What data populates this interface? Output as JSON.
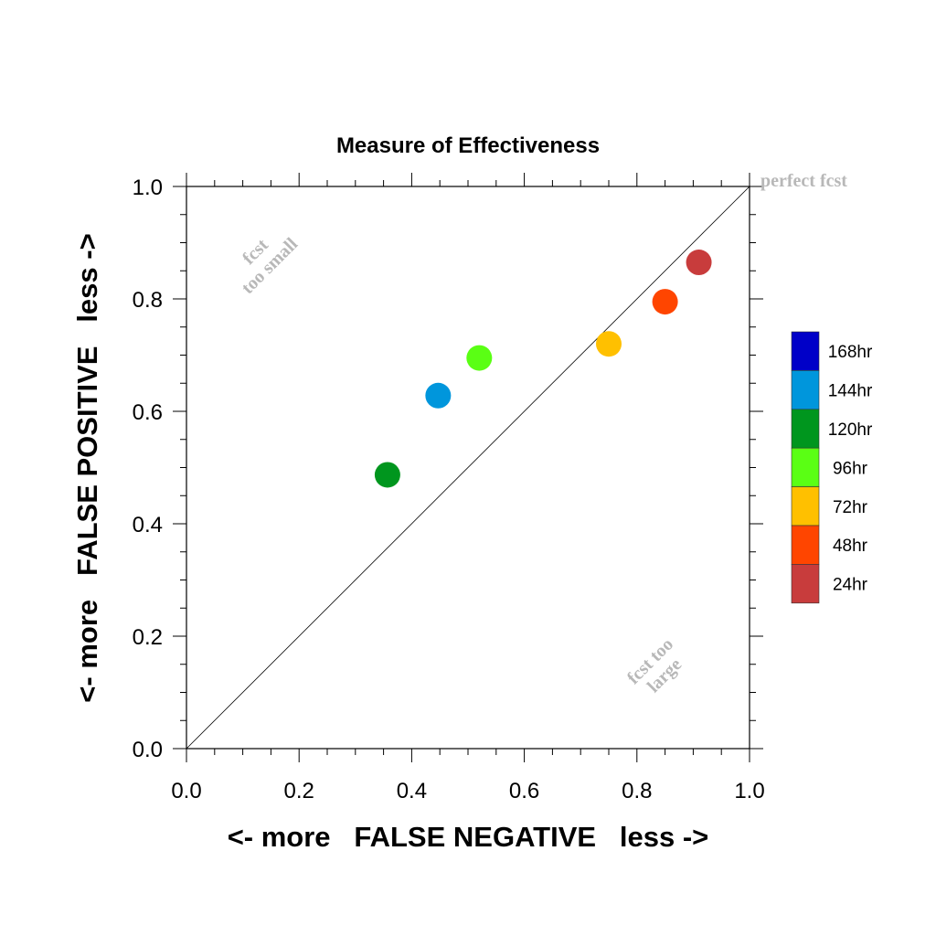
{
  "chart_data": {
    "type": "scatter",
    "title": "Measure of Effectiveness",
    "xlabel": "<- more   FALSE NEGATIVE   less ->",
    "ylabel": "<- more   FALSE POSITIVE   less ->",
    "xlim": [
      0.0,
      1.0
    ],
    "ylim": [
      0.0,
      1.0
    ],
    "x_ticks": [
      "0.0",
      "0.2",
      "0.4",
      "0.6",
      "0.8",
      "1.0"
    ],
    "y_ticks": [
      "0.0",
      "0.2",
      "0.4",
      "0.6",
      "0.8",
      "1.0"
    ],
    "reference_line": {
      "from": [
        0.0,
        0.0
      ],
      "to": [
        1.0,
        1.0
      ]
    },
    "annotations": {
      "perfect": "perfect fcst",
      "too_small": [
        "fcst",
        "too small"
      ],
      "too_large": [
        "fcst too",
        "large"
      ]
    },
    "points": [
      {
        "label": "24hr",
        "x": 0.91,
        "y": 0.865,
        "color": "#c83c3c"
      },
      {
        "label": "48hr",
        "x": 0.85,
        "y": 0.795,
        "color": "#ff4500"
      },
      {
        "label": "72hr",
        "x": 0.75,
        "y": 0.72,
        "color": "#ffc000"
      },
      {
        "label": "96hr",
        "x": 0.52,
        "y": 0.695,
        "color": "#5aff14"
      },
      {
        "label": "144hr",
        "x": 0.447,
        "y": 0.628,
        "color": "#0096dc"
      },
      {
        "label": "120hr",
        "x": 0.357,
        "y": 0.487,
        "color": "#00961e"
      }
    ],
    "legend": {
      "placement": "right",
      "items": [
        {
          "label": "168hr",
          "color": "#0000c8"
        },
        {
          "label": "144hr",
          "color": "#0096dc"
        },
        {
          "label": "120hr",
          "color": "#00961e"
        },
        {
          "label": "96hr",
          "color": "#5aff14"
        },
        {
          "label": "72hr",
          "color": "#ffc000"
        },
        {
          "label": "48hr",
          "color": "#ff4500"
        },
        {
          "label": "24hr",
          "color": "#c83c3c"
        }
      ]
    },
    "grid": false
  }
}
